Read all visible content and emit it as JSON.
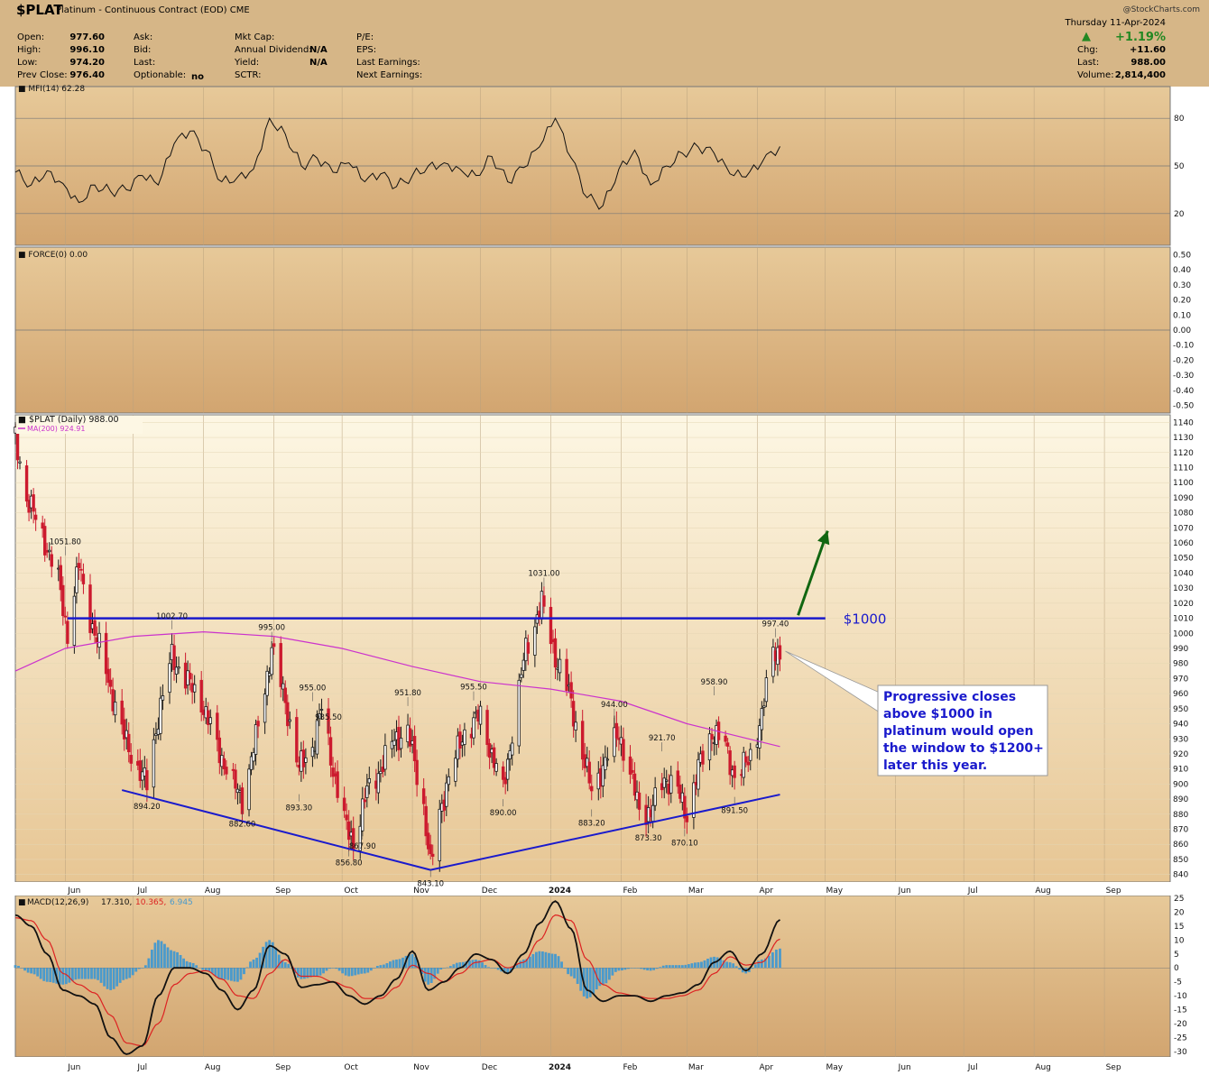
{
  "header": {
    "symbol": "$PLAT",
    "description": "Platinum - Continuous Contract (EOD)",
    "exchange": "CME",
    "brand": "@StockCharts.com",
    "date": "Thursday  11-Apr-2024",
    "open_label": "Open:",
    "open": "977.60",
    "high_label": "High:",
    "high": "996.10",
    "low_label": "Low:",
    "low": "974.20",
    "prev_close_label": "Prev Close:",
    "prev_close": "976.40",
    "ask_label": "Ask:",
    "bid_label": "Bid:",
    "last_label": "Last:",
    "optionable_label": "Optionable:",
    "optionable": "no",
    "mktcap_label": "Mkt Cap:",
    "dividend_label": "Annual Dividend:",
    "dividend": "N/A",
    "yield_label": "Yield:",
    "yield": "N/A",
    "sctr_label": "SCTR:",
    "pe_label": "P/E:",
    "eps_label": "EPS:",
    "last_earnings_label": "Last Earnings:",
    "next_earnings_label": "Next Earnings:",
    "pct_change": "+1.19%",
    "chg_label": "Chg:",
    "chg": "+11.60",
    "last_price_label": "Last:",
    "last_price": "988.00",
    "volume_label": "Volume:",
    "volume": "2,814,400"
  },
  "colors": {
    "header_bg": "#d6b687",
    "price_bg_top": "#fdf7e4",
    "price_bg_bottom": "#e7c694",
    "panel_bg_top": "#e7c999",
    "panel_bg_bottom": "#d2a570",
    "candle_down": "#cc1a2e",
    "candle_up": "#1a1a1a",
    "ma200": "#cc33cc",
    "trendline": "#1a1acc",
    "arrow": "#116611",
    "annotation": "#1a1acc",
    "macd_hist": "#4a9acc",
    "macd_signal": "#dd2222",
    "up_triangle": "#228822"
  },
  "chart_data": [
    {
      "type": "line",
      "title": "MFI(14) 62.28",
      "ylim": [
        0,
        100
      ],
      "y_ticks": [
        20,
        50,
        80
      ],
      "x": [
        "2023-05-10",
        "2023-05-17",
        "2023-05-24",
        "2023-05-31",
        "2023-06-07",
        "2023-06-14",
        "2023-06-21",
        "2023-06-28",
        "2023-07-05",
        "2023-07-12",
        "2023-07-19",
        "2023-07-26",
        "2023-08-02",
        "2023-08-09",
        "2023-08-16",
        "2023-08-23",
        "2023-08-30",
        "2023-09-06",
        "2023-09-13",
        "2023-09-20",
        "2023-09-27",
        "2023-10-04",
        "2023-10-11",
        "2023-10-18",
        "2023-10-25",
        "2023-11-01",
        "2023-11-08",
        "2023-11-15",
        "2023-11-22",
        "2023-11-29",
        "2023-12-06",
        "2023-12-13",
        "2023-12-20",
        "2023-12-27",
        "2024-01-03",
        "2024-01-10",
        "2024-01-17",
        "2024-01-24",
        "2024-01-31",
        "2024-02-07",
        "2024-02-14",
        "2024-02-21",
        "2024-02-28",
        "2024-03-06",
        "2024-03-13",
        "2024-03-20",
        "2024-03-27",
        "2024-04-03",
        "2024-04-11"
      ],
      "values": [
        46,
        38,
        47,
        39,
        27,
        38,
        34,
        35,
        44,
        38,
        64,
        72,
        60,
        40,
        43,
        48,
        80,
        70,
        50,
        55,
        46,
        52,
        40,
        45,
        37,
        44,
        50,
        52,
        48,
        44,
        56,
        40,
        49,
        62,
        80,
        55,
        30,
        25,
        48,
        60,
        38,
        50,
        58,
        62,
        58,
        45,
        43,
        52,
        62.28
      ]
    },
    {
      "type": "line",
      "title": "FORCE(0) 0.00",
      "ylim": [
        -0.55,
        0.55
      ],
      "y_ticks": [
        0.5,
        0.4,
        0.3,
        0.2,
        0.1,
        0,
        -0.1,
        -0.2,
        -0.3,
        -0.4,
        -0.5
      ],
      "y_tick_labels": [
        "0.50",
        "0.40",
        "0.30",
        "0.20",
        "0.10",
        "0.00",
        "-0.10",
        "-0.20",
        "-0.30",
        "-0.40",
        "-0.50"
      ],
      "values": [
        0
      ]
    },
    {
      "type": "candlestick",
      "title": "$PLAT (Daily) 988.00",
      "legend": "MA(200) 924.91",
      "ylim": [
        835,
        1145
      ],
      "y_ticks": [
        840,
        850,
        860,
        870,
        880,
        890,
        900,
        910,
        920,
        930,
        940,
        950,
        960,
        970,
        980,
        990,
        1000,
        1010,
        1020,
        1030,
        1040,
        1050,
        1060,
        1070,
        1080,
        1090,
        1100,
        1110,
        1120,
        1130,
        1140
      ],
      "x_ticks": [
        "Jun",
        "Jul",
        "Aug",
        "Sep",
        "Oct",
        "Nov",
        "Dec",
        "2024",
        "Feb",
        "Mar",
        "Apr",
        "May",
        "Jun",
        "Jul",
        "Aug",
        "Sep"
      ],
      "close_path": [
        {
          "date": "2023-05-10",
          "close": 1130
        },
        {
          "date": "2023-05-15",
          "close": 1090
        },
        {
          "date": "2023-05-22",
          "close": 1065
        },
        {
          "date": "2023-05-29",
          "close": 1035
        },
        {
          "date": "2023-06-02",
          "close": 1000
        },
        {
          "date": "2023-06-07",
          "close": 1045
        },
        {
          "date": "2023-06-12",
          "close": 1010
        },
        {
          "date": "2023-06-19",
          "close": 975
        },
        {
          "date": "2023-06-26",
          "close": 935
        },
        {
          "date": "2023-07-03",
          "close": 910
        },
        {
          "date": "2023-07-07",
          "close": 900
        },
        {
          "date": "2023-07-12",
          "close": 945
        },
        {
          "date": "2023-07-18",
          "close": 985
        },
        {
          "date": "2023-07-24",
          "close": 970
        },
        {
          "date": "2023-07-31",
          "close": 955
        },
        {
          "date": "2023-08-07",
          "close": 925
        },
        {
          "date": "2023-08-14",
          "close": 900
        },
        {
          "date": "2023-08-18",
          "close": 890
        },
        {
          "date": "2023-08-24",
          "close": 930
        },
        {
          "date": "2023-08-31",
          "close": 990
        },
        {
          "date": "2023-09-06",
          "close": 955
        },
        {
          "date": "2023-09-12",
          "close": 910
        },
        {
          "date": "2023-09-18",
          "close": 925
        },
        {
          "date": "2023-09-22",
          "close": 950
        },
        {
          "date": "2023-09-27",
          "close": 910
        },
        {
          "date": "2023-10-03",
          "close": 870
        },
        {
          "date": "2023-10-06",
          "close": 862
        },
        {
          "date": "2023-10-12",
          "close": 895
        },
        {
          "date": "2023-10-18",
          "close": 910
        },
        {
          "date": "2023-10-24",
          "close": 930
        },
        {
          "date": "2023-10-30",
          "close": 935
        },
        {
          "date": "2023-11-06",
          "close": 885
        },
        {
          "date": "2023-11-09",
          "close": 845
        },
        {
          "date": "2023-11-13",
          "close": 880
        },
        {
          "date": "2023-11-17",
          "close": 905
        },
        {
          "date": "2023-11-24",
          "close": 935
        },
        {
          "date": "2023-12-01",
          "close": 945
        },
        {
          "date": "2023-12-06",
          "close": 920
        },
        {
          "date": "2023-12-11",
          "close": 895
        },
        {
          "date": "2023-12-15",
          "close": 935
        },
        {
          "date": "2023-12-21",
          "close": 990
        },
        {
          "date": "2023-12-28",
          "close": 1020
        },
        {
          "date": "2024-01-03",
          "close": 985
        },
        {
          "date": "2024-01-09",
          "close": 960
        },
        {
          "date": "2024-01-15",
          "close": 920
        },
        {
          "date": "2024-01-19",
          "close": 895
        },
        {
          "date": "2024-01-25",
          "close": 915
        },
        {
          "date": "2024-01-31",
          "close": 935
        },
        {
          "date": "2024-02-05",
          "close": 905
        },
        {
          "date": "2024-02-09",
          "close": 885
        },
        {
          "date": "2024-02-14",
          "close": 880
        },
        {
          "date": "2024-02-20",
          "close": 905
        },
        {
          "date": "2024-02-26",
          "close": 895
        },
        {
          "date": "2024-03-01",
          "close": 880
        },
        {
          "date": "2024-03-06",
          "close": 910
        },
        {
          "date": "2024-03-12",
          "close": 935
        },
        {
          "date": "2024-03-18",
          "close": 925
        },
        {
          "date": "2024-03-22",
          "close": 905
        },
        {
          "date": "2024-03-28",
          "close": 915
        },
        {
          "date": "2024-04-03",
          "close": 945
        },
        {
          "date": "2024-04-08",
          "close": 990
        },
        {
          "date": "2024-04-11",
          "close": 988
        }
      ],
      "ma200": [
        {
          "date": "2023-05-10",
          "value": 975
        },
        {
          "date": "2023-06-01",
          "value": 990
        },
        {
          "date": "2023-07-01",
          "value": 998
        },
        {
          "date": "2023-08-01",
          "value": 1001
        },
        {
          "date": "2023-09-01",
          "value": 998
        },
        {
          "date": "2023-10-01",
          "value": 990
        },
        {
          "date": "2023-11-01",
          "value": 978
        },
        {
          "date": "2023-12-01",
          "value": 968
        },
        {
          "date": "2024-01-01",
          "value": 963
        },
        {
          "date": "2024-02-01",
          "value": 955
        },
        {
          "date": "2024-03-01",
          "value": 940
        },
        {
          "date": "2024-04-11",
          "value": 924.91
        }
      ],
      "price_labels": [
        {
          "date": "2023-06-01",
          "value": 1051.8,
          "text": "1051.80",
          "position": "above"
        },
        {
          "date": "2023-07-07",
          "value": 894.2,
          "text": "894.20",
          "position": "below"
        },
        {
          "date": "2023-07-18",
          "value": 1002.7,
          "text": "1002.70",
          "position": "above"
        },
        {
          "date": "2023-08-18",
          "value": 882.6,
          "text": "882.60",
          "position": "below"
        },
        {
          "date": "2023-08-31",
          "value": 995.0,
          "text": "995.00",
          "position": "above"
        },
        {
          "date": "2023-09-12",
          "value": 893.3,
          "text": "893.30",
          "position": "below"
        },
        {
          "date": "2023-09-18",
          "value": 955.0,
          "text": "955.00",
          "position": "above"
        },
        {
          "date": "2023-09-25",
          "value": 935.5,
          "text": "935.50",
          "position": "above"
        },
        {
          "date": "2023-10-04",
          "value": 856.8,
          "text": "856.80",
          "position": "below"
        },
        {
          "date": "2023-10-10",
          "value": 867.9,
          "text": "867.90",
          "position": "below"
        },
        {
          "date": "2023-10-30",
          "value": 951.8,
          "text": "951.80",
          "position": "above"
        },
        {
          "date": "2023-11-09",
          "value": 843.1,
          "text": "843.10",
          "position": "below"
        },
        {
          "date": "2023-11-28",
          "value": 955.5,
          "text": "955.50",
          "position": "above"
        },
        {
          "date": "2023-12-11",
          "value": 890.0,
          "text": "890.00",
          "position": "below"
        },
        {
          "date": "2023-12-29",
          "value": 1031.0,
          "text": "1031.00",
          "position": "above"
        },
        {
          "date": "2024-01-19",
          "value": 883.2,
          "text": "883.20",
          "position": "below"
        },
        {
          "date": "2024-01-29",
          "value": 944.0,
          "text": "944.00",
          "position": "above"
        },
        {
          "date": "2024-02-13",
          "value": 873.3,
          "text": "873.30",
          "position": "below"
        },
        {
          "date": "2024-02-19",
          "value": 921.7,
          "text": "921.70",
          "position": "above"
        },
        {
          "date": "2024-02-29",
          "value": 870.1,
          "text": "870.10",
          "position": "below"
        },
        {
          "date": "2024-03-13",
          "value": 958.9,
          "text": "958.90",
          "position": "above"
        },
        {
          "date": "2024-03-22",
          "value": 891.5,
          "text": "891.50",
          "position": "below"
        },
        {
          "date": "2024-04-09",
          "value": 997.4,
          "text": "997.40",
          "position": "above"
        }
      ],
      "resistance": {
        "value": 1010,
        "label": "$1000",
        "from": "2023-06-02",
        "to": "2024-05-01"
      },
      "support_lines": [
        [
          {
            "date": "2023-06-26",
            "value": 896
          },
          {
            "date": "2023-11-09",
            "value": 843
          }
        ],
        [
          {
            "date": "2023-11-09",
            "value": 843
          },
          {
            "date": "2024-04-11",
            "value": 893
          }
        ]
      ],
      "arrow": {
        "from": {
          "date": "2024-04-19",
          "value": 1012
        },
        "to": {
          "date": "2024-05-02",
          "value": 1068
        }
      },
      "annotation": "Progressive closes above $1000 in platinum would open the window to $1200+ later this year.",
      "annotation_target": {
        "date": "2024-04-11",
        "value": 987
      }
    },
    {
      "type": "line",
      "title": "MACD(12,26,9)",
      "macd_value": "17.310",
      "signal_value": "10.365",
      "hist_value": "6.945",
      "ylim": [
        -32,
        26
      ],
      "y_ticks": [
        25,
        20,
        15,
        10,
        5,
        0,
        -5,
        -10,
        -15,
        -20,
        -25,
        -30
      ],
      "dates": [
        "2023-05-10",
        "2023-05-17",
        "2023-05-24",
        "2023-05-31",
        "2023-06-07",
        "2023-06-14",
        "2023-06-21",
        "2023-06-28",
        "2023-07-05",
        "2023-07-12",
        "2023-07-19",
        "2023-07-26",
        "2023-08-02",
        "2023-08-09",
        "2023-08-16",
        "2023-08-23",
        "2023-08-30",
        "2023-09-06",
        "2023-09-13",
        "2023-09-20",
        "2023-09-27",
        "2023-10-04",
        "2023-10-11",
        "2023-10-18",
        "2023-10-25",
        "2023-11-01",
        "2023-11-08",
        "2023-11-15",
        "2023-11-22",
        "2023-11-29",
        "2023-12-06",
        "2023-12-13",
        "2023-12-20",
        "2023-12-27",
        "2024-01-03",
        "2024-01-10",
        "2024-01-17",
        "2024-01-24",
        "2024-01-31",
        "2024-02-07",
        "2024-02-14",
        "2024-02-21",
        "2024-02-28",
        "2024-03-06",
        "2024-03-13",
        "2024-03-20",
        "2024-03-27",
        "2024-04-03",
        "2024-04-11"
      ],
      "macd": [
        19,
        15,
        5,
        -8,
        -10,
        -13,
        -25,
        -31,
        -28,
        -10,
        0,
        0,
        -2,
        -8,
        -15,
        -8,
        8,
        5,
        -7,
        -6,
        -5,
        -10,
        -13,
        -10,
        -4,
        6,
        -8,
        -5,
        0,
        5,
        3,
        -2,
        5,
        16,
        24,
        14,
        -8,
        -12,
        -10,
        -10,
        -12,
        -10,
        -9,
        -6,
        2,
        6,
        -1,
        5,
        17.31
      ],
      "signal": [
        18,
        17,
        10,
        -2,
        -6,
        -9,
        -17,
        -27,
        -28,
        -20,
        -6,
        -2,
        -1,
        -4,
        -10,
        -11,
        -2,
        3,
        -3,
        -3,
        -5,
        -7,
        -11,
        -11,
        -7,
        1,
        -2,
        -5,
        -2,
        2,
        3,
        0,
        2,
        10,
        19,
        17,
        3,
        -6,
        -9,
        -10,
        -11,
        -11,
        -10,
        -8,
        -2,
        4,
        1,
        2,
        10.365
      ],
      "histogram": [
        1,
        -2,
        -5,
        -6,
        -4,
        -4,
        -8,
        -4,
        0,
        10,
        6,
        2,
        -1,
        -4,
        -5,
        3,
        10,
        2,
        -4,
        -3,
        0,
        -3,
        -2,
        1,
        3,
        5,
        -6,
        0,
        2,
        3,
        0,
        -2,
        3,
        6,
        5,
        -3,
        -11,
        -6,
        -1,
        0,
        -1,
        1,
        1,
        2,
        4,
        2,
        -2,
        3,
        6.945
      ]
    }
  ]
}
